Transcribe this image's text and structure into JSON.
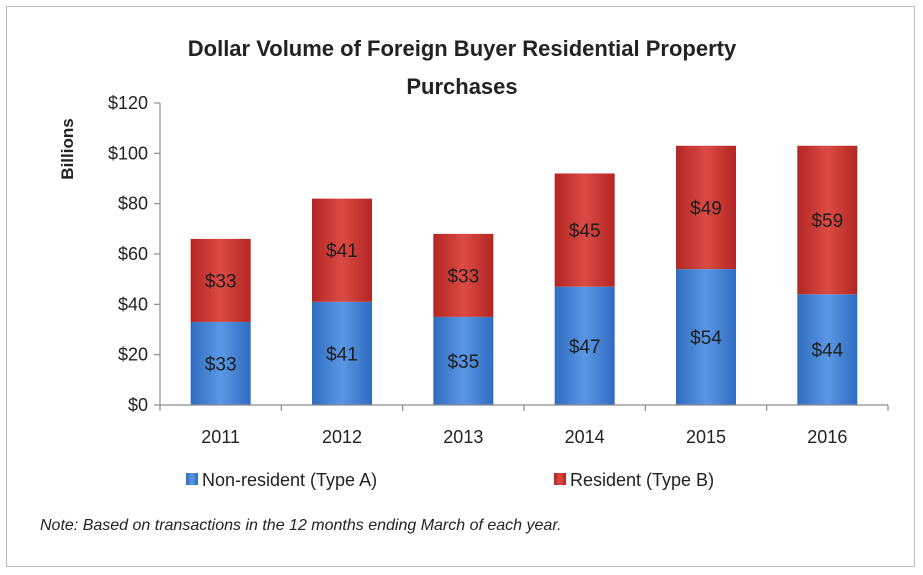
{
  "chart_data": {
    "type": "bar",
    "stacked": true,
    "title": "Dollar Volume of Foreign Buyer Residential Property Purchases",
    "title_lines": [
      "Dollar Volume of Foreign Buyer Residential Property",
      "Purchases"
    ],
    "ylabel": "Billions",
    "xlabel": "",
    "ylim": [
      0,
      120
    ],
    "yticks": [
      0,
      20,
      40,
      60,
      80,
      100,
      120
    ],
    "ytick_labels": [
      "$0",
      "$20",
      "$40",
      "$60",
      "$80",
      "$100",
      "$120"
    ],
    "categories": [
      "2011",
      "2012",
      "2013",
      "2014",
      "2015",
      "2016"
    ],
    "series": [
      {
        "name": "Non-resident (Type A)",
        "color": "#3e7ed0",
        "values": [
          33,
          41,
          35,
          47,
          54,
          44
        ],
        "labels": [
          "$33",
          "$41",
          "$35",
          "$47",
          "$54",
          "$44"
        ]
      },
      {
        "name": "Resident (Type B)",
        "color": "#c9332f",
        "values": [
          33,
          41,
          33,
          45,
          49,
          59
        ],
        "labels": [
          "$33",
          "$41",
          "$33",
          "$45",
          "$49",
          "$59"
        ]
      }
    ],
    "grid": false,
    "legend_position": "bottom",
    "note": "Note: Based on transactions in the 12 months ending March of each year."
  }
}
